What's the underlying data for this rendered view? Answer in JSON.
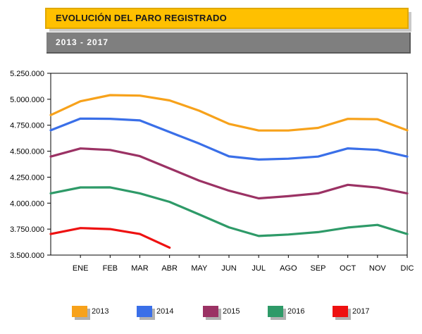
{
  "header": {
    "title": "EVOLUCIÓN DEL PARO REGISTRADO",
    "subtitle": "2013 - 2017"
  },
  "chart_data": {
    "type": "line",
    "categories": [
      "ENE",
      "FEB",
      "MAR",
      "ABR",
      "MAY",
      "JUN",
      "JUL",
      "AGO",
      "SEP",
      "OCT",
      "NOV",
      "DIC"
    ],
    "y_ticks": [
      "3.500.000",
      "3.750.000",
      "4.000.000",
      "4.250.000",
      "4.500.000",
      "4.750.000",
      "5.000.000",
      "5.250.000"
    ],
    "ylim": [
      3500000,
      5250000
    ],
    "grid": false,
    "legend_position": "bottom",
    "series": [
      {
        "name": "2013",
        "color": "#f7a21b",
        "start": 4848000,
        "values": [
          4981000,
          5040000,
          5035000,
          4989000,
          4890000,
          4763000,
          4699000,
          4699000,
          4724000,
          4811000,
          4808000,
          4701000
        ]
      },
      {
        "name": "2014",
        "color": "#3a6fe8",
        "start": 4701000,
        "values": [
          4814000,
          4812000,
          4796000,
          4684000,
          4573000,
          4450000,
          4420000,
          4428000,
          4448000,
          4527000,
          4513000,
          4448000
        ]
      },
      {
        "name": "2015",
        "color": "#9b3264",
        "start": 4448000,
        "values": [
          4526000,
          4512000,
          4452000,
          4334000,
          4216000,
          4120000,
          4046000,
          4067000,
          4094000,
          4176000,
          4150000,
          4094000
        ]
      },
      {
        "name": "2016",
        "color": "#2e9a68",
        "start": 4094000,
        "values": [
          4151000,
          4152000,
          4094000,
          4012000,
          3891000,
          3767000,
          3684000,
          3698000,
          3721000,
          3765000,
          3790000,
          3703000
        ]
      },
      {
        "name": "2017",
        "color": "#ee1111",
        "start": 3703000,
        "values": [
          3760000,
          3750000,
          3703000,
          3572000,
          null,
          null,
          null,
          null,
          null,
          null,
          null,
          null
        ]
      }
    ]
  }
}
